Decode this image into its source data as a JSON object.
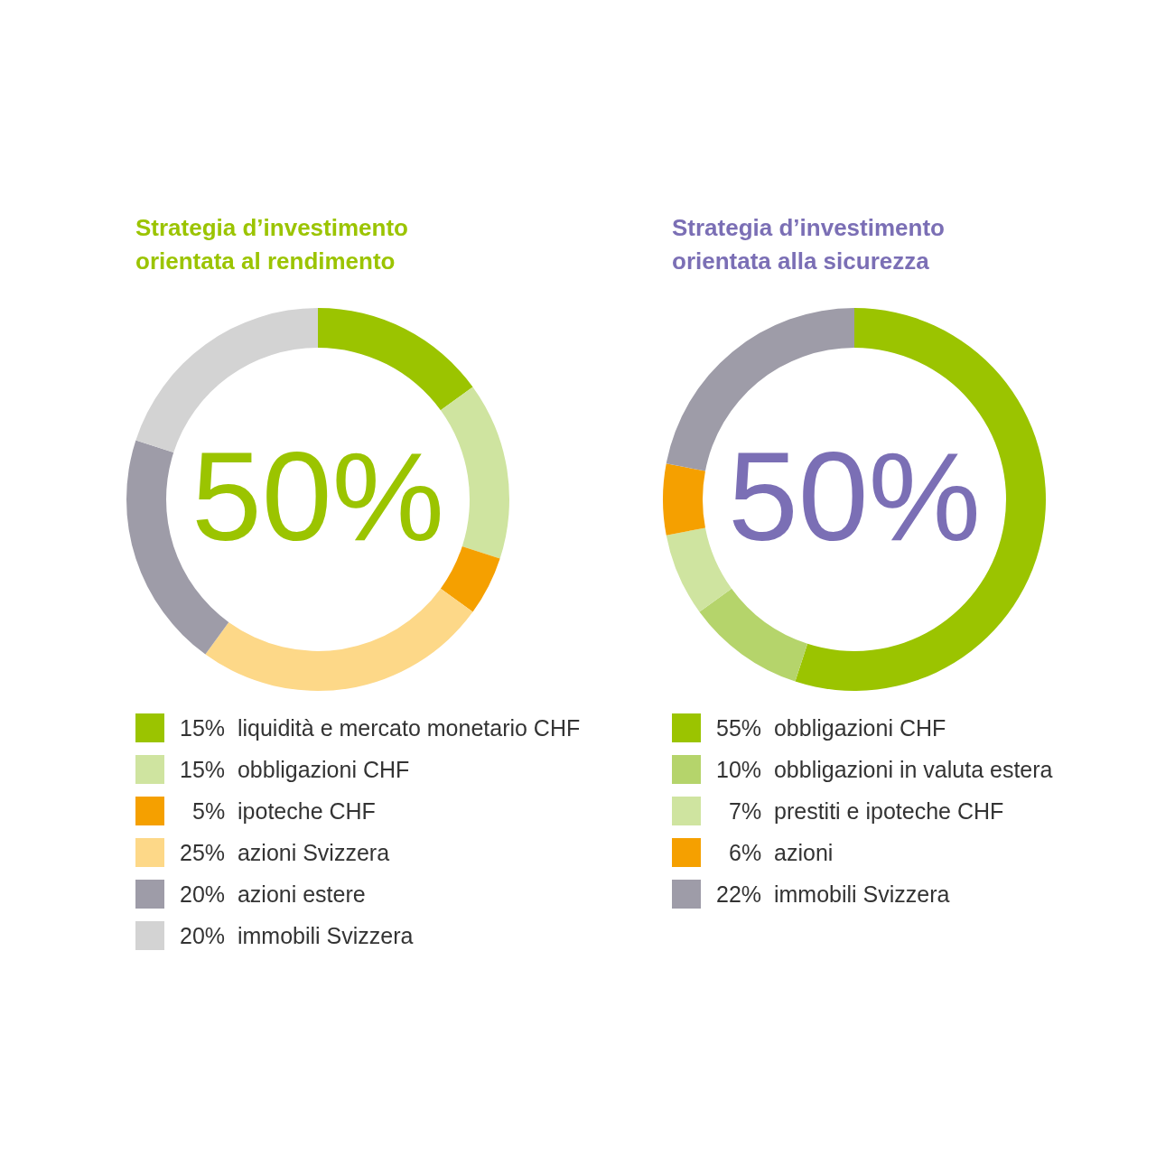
{
  "chart_data": [
    {
      "type": "donut",
      "title": "Strategia d’investimento orientata al rendimento",
      "annotations": [
        "50%"
      ],
      "legend": "bottom",
      "value_labels": [
        "15%",
        "15%",
        "5%",
        "25%",
        "20%",
        "20%"
      ],
      "categories": [
        "liquidità e mercato monetario CHF",
        "obbligazioni CHF",
        "ipoteche CHF",
        "azioni Svizzera",
        "azioni estere",
        "immobili Svizzera"
      ],
      "values": [
        15,
        15,
        5,
        25,
        20,
        20
      ],
      "colors": [
        "#9bc400",
        "#cfe4a0",
        "#f5a000",
        "#fdd888",
        "#9e9ca8",
        "#d3d3d3"
      ]
    },
    {
      "type": "donut",
      "title": "Strategia d’investimento orientata alla sicurezza",
      "annotations": [
        "50%"
      ],
      "legend": "bottom",
      "value_labels": [
        "55%",
        "10%",
        "7%",
        "6%",
        "22%"
      ],
      "categories": [
        "obbligazioni CHF",
        "obbligazioni in valuta estera",
        "prestiti e ipoteche CHF",
        "azioni",
        "immobili Svizzera"
      ],
      "values": [
        55,
        10,
        7,
        6,
        22
      ],
      "colors": [
        "#9bc400",
        "#b5d46b",
        "#cfe4a0",
        "#f5a000",
        "#9e9ca8"
      ]
    }
  ]
}
